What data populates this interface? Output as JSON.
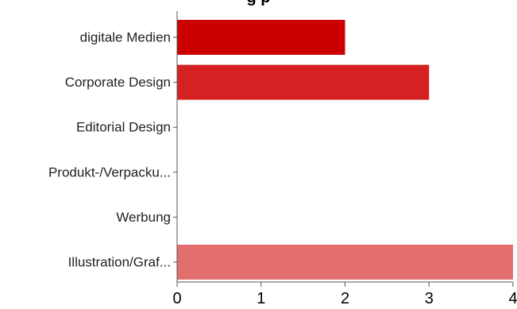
{
  "chart_data": {
    "type": "bar",
    "orientation": "horizontal",
    "title": "g                                   p",
    "categories": [
      "digitale Medien",
      "Corporate Design",
      "Editorial Design",
      "Produkt-/Verpacku...",
      "Werbung",
      "Illustration/Graf..."
    ],
    "values": [
      2,
      3,
      0,
      0,
      0,
      4
    ],
    "bar_colors": [
      "#cc0000",
      "#d52121",
      "#cc0000",
      "#cc0000",
      "#cc0000",
      "#e36e6e"
    ],
    "xlim": [
      0,
      4
    ],
    "xticks": [
      "0",
      "1",
      "2",
      "3",
      "4"
    ],
    "xlabel": "",
    "ylabel": "",
    "grid": false,
    "axis_color": "#555555"
  }
}
